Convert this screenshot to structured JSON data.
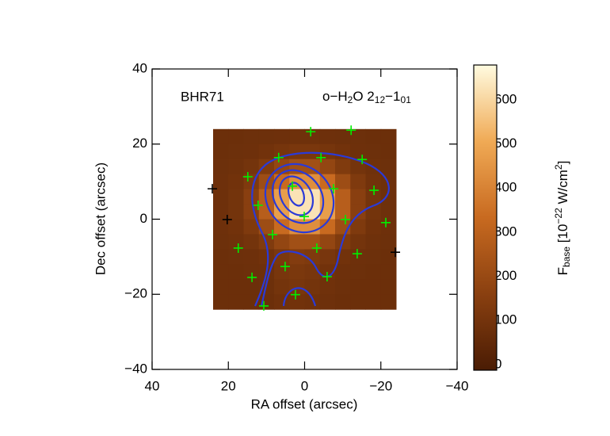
{
  "chart_data": {
    "type": "image",
    "annotation_left": "BHR71",
    "annotation_right": [
      {
        "text": "o−H"
      },
      {
        "sub": "2"
      },
      {
        "text": "O 2"
      },
      {
        "sub": "12"
      },
      {
        "text": "−1"
      },
      {
        "sub": "01"
      }
    ],
    "xlabel": "RA offset (arcsec)",
    "ylabel": "Dec offset (arcsec)",
    "xlim": [
      40,
      -40
    ],
    "ylim": [
      -40,
      40
    ],
    "xticks": [
      40,
      20,
      0,
      {
        "value": -20,
        "label": "−20"
      },
      {
        "value": -40,
        "label": "−40"
      }
    ],
    "yticks": [
      {
        "value": -40,
        "label": "−40"
      },
      {
        "value": -20,
        "label": "−20"
      },
      0,
      20,
      40
    ],
    "image": {
      "extent": [
        24,
        -24,
        -24,
        24
      ],
      "values": [
        [
          80,
          80,
          81,
          82,
          85,
          86,
          86,
          85,
          82,
          81,
          80,
          80
        ],
        [
          80,
          81,
          85,
          94,
          107,
          118,
          118,
          107,
          94,
          85,
          81,
          80
        ],
        [
          81,
          86,
          100,
          134,
          184,
          224,
          224,
          184,
          134,
          100,
          86,
          81
        ],
        [
          83,
          94,
          129,
          212,
          333,
          431,
          431,
          333,
          212,
          129,
          94,
          83
        ],
        [
          84,
          101,
          157,
          285,
          473,
          627,
          627,
          473,
          285,
          157,
          101,
          84
        ],
        [
          84,
          101,
          157,
          285,
          473,
          627,
          627,
          473,
          285,
          157,
          101,
          84
        ],
        [
          83,
          94,
          129,
          212,
          333,
          431,
          431,
          333,
          212,
          129,
          94,
          83
        ],
        [
          81,
          86,
          100,
          134,
          184,
          224,
          224,
          184,
          134,
          100,
          86,
          81
        ],
        [
          80,
          81,
          85,
          94,
          120,
          140,
          130,
          110,
          94,
          85,
          81,
          80
        ],
        [
          80,
          80,
          81,
          85,
          110,
          120,
          110,
          95,
          85,
          81,
          80,
          80
        ],
        [
          80,
          80,
          80,
          82,
          100,
          110,
          100,
          90,
          82,
          80,
          80,
          80
        ],
        [
          80,
          80,
          80,
          80,
          90,
          95,
          90,
          85,
          80,
          80,
          80,
          80
        ]
      ]
    },
    "colormap": [
      "#4a1c04",
      "#8a4010",
      "#c86a20",
      "#f0aa55",
      "#fffbe0"
    ],
    "clim": [
      -13,
      679
    ],
    "colorbar_ticks": [
      0,
      100,
      200,
      300,
      400,
      500,
      600
    ],
    "colorbar_label": [
      {
        "text": "F"
      },
      {
        "sub": "base"
      },
      {
        "text": " [10"
      },
      {
        "sup": "−22"
      },
      {
        "text": " W/cm"
      },
      {
        "sup": "2"
      },
      {
        "text": "]"
      }
    ],
    "series": [
      {
        "color": "#00ee00",
        "x": [
          -1.6,
          -12.2,
          6.8,
          -4.3,
          -15.1,
          14.9,
          3.2,
          -7.6,
          -18.2,
          12.2,
          0.1,
          -10.7,
          -21.3,
          8.4,
          17.4,
          -3.2,
          -13.8,
          5.1,
          13.8,
          -5.9,
          2.4,
          10.7
        ],
        "y": [
          23.3,
          23.7,
          16.4,
          16.4,
          15.9,
          11.3,
          8.8,
          8.1,
          7.7,
          3.7,
          0.7,
          -0.1,
          -0.9,
          -4.1,
          -7.7,
          -7.7,
          -9.2,
          -12.6,
          -15.5,
          -15.3,
          -20.1,
          -23.1
        ]
      },
      {
        "color": "#000000",
        "x": [
          24.2,
          20.3,
          -23.8
        ],
        "y": [
          8.1,
          -0.1,
          -8.8
        ]
      }
    ]
  }
}
